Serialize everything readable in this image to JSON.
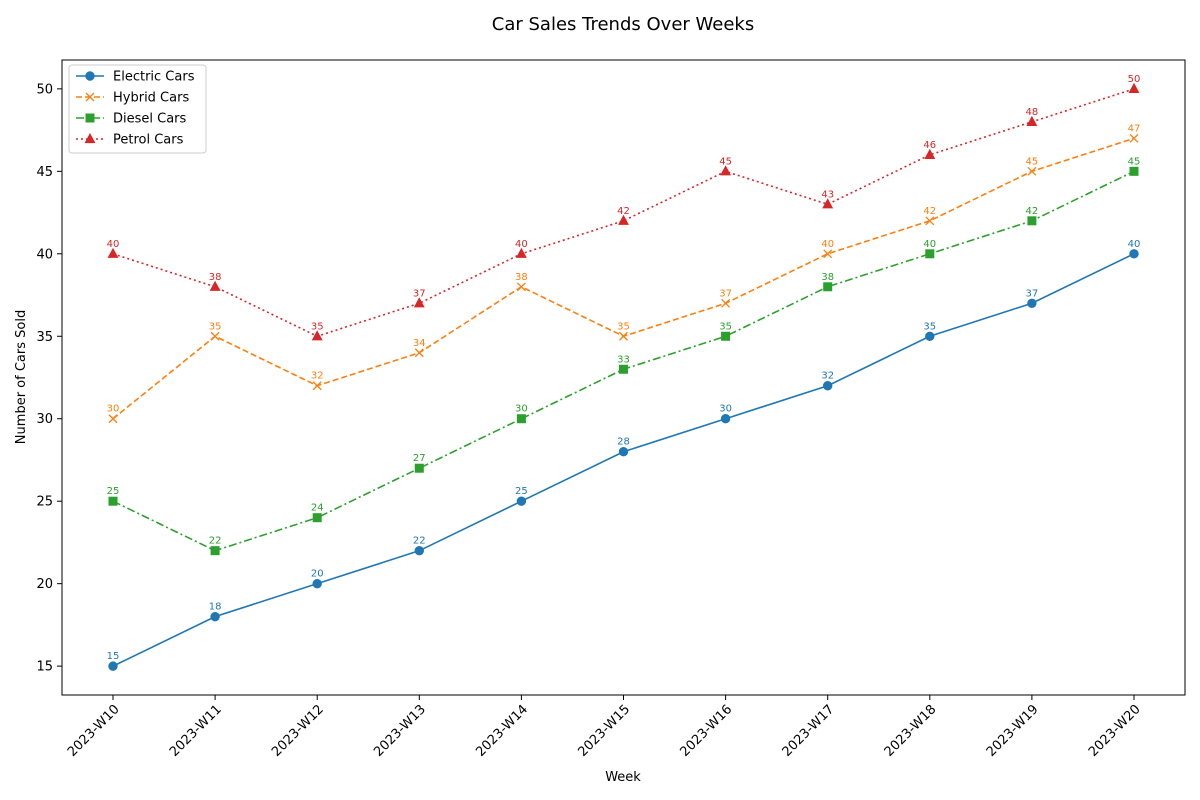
{
  "chart_data": {
    "type": "line",
    "title": "Car Sales Trends Over Weeks",
    "xlabel": "Week",
    "ylabel": "Number of Cars Sold",
    "categories": [
      "2023-W10",
      "2023-W11",
      "2023-W12",
      "2023-W13",
      "2023-W14",
      "2023-W15",
      "2023-W16",
      "2023-W17",
      "2023-W18",
      "2023-W19",
      "2023-W20"
    ],
    "yticks": [
      15,
      20,
      25,
      30,
      35,
      40,
      45,
      50
    ],
    "ylim": [
      13.25,
      51.75
    ],
    "grid": false,
    "legend_position": "top-left",
    "series": [
      {
        "name": "Electric Cars",
        "color": "#1f77b4",
        "marker": "circle",
        "line_style": "solid",
        "values": [
          15,
          18,
          20,
          22,
          25,
          28,
          30,
          32,
          35,
          37,
          40
        ]
      },
      {
        "name": "Hybrid Cars",
        "color": "#ff7f0e",
        "marker": "x",
        "line_style": "dashed",
        "values": [
          30,
          35,
          32,
          34,
          38,
          35,
          37,
          40,
          42,
          45,
          47
        ]
      },
      {
        "name": "Diesel Cars",
        "color": "#2ca02c",
        "marker": "square",
        "line_style": "dashdot",
        "values": [
          25,
          22,
          24,
          27,
          30,
          33,
          35,
          38,
          40,
          42,
          45
        ]
      },
      {
        "name": "Petrol Cars",
        "color": "#d62728",
        "marker": "triangle",
        "line_style": "dotted",
        "values": [
          40,
          38,
          35,
          37,
          40,
          42,
          45,
          43,
          46,
          48,
          50
        ]
      }
    ]
  }
}
